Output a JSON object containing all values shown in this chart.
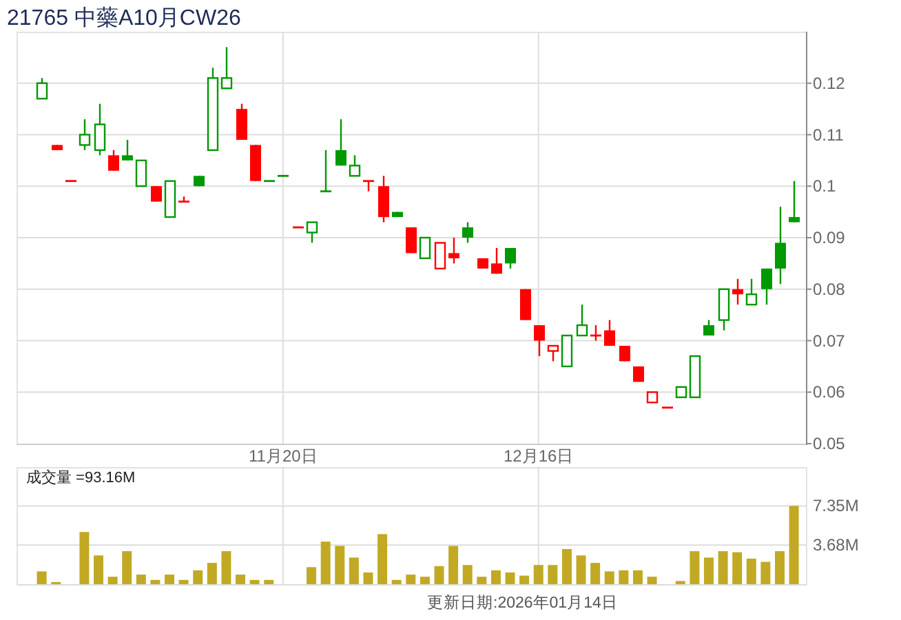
{
  "chart_data": [
    {
      "type": "candlestick",
      "title": "21765 中藥A10月CW26",
      "categories": [
        null,
        null,
        null,
        null,
        null,
        null,
        null,
        null,
        null,
        null,
        null,
        null,
        null,
        null,
        null,
        null,
        null,
        "11月20日",
        null,
        null,
        null,
        null,
        null,
        null,
        null,
        null,
        null,
        null,
        null,
        null,
        null,
        null,
        null,
        null,
        null,
        "12月16日",
        null,
        null,
        null,
        null,
        null,
        null,
        null,
        null,
        null,
        null,
        null,
        null,
        null,
        null,
        null,
        null,
        null,
        null
      ],
      "ohlc": [
        [
          0.117,
          0.121,
          0.117,
          0.12
        ],
        [
          0.108,
          0.108,
          0.107,
          0.107
        ],
        [
          0.101,
          0.101,
          0.101,
          0.101
        ],
        [
          0.108,
          0.113,
          0.107,
          0.11
        ],
        [
          0.107,
          0.116,
          0.106,
          0.112
        ],
        [
          0.106,
          0.107,
          0.103,
          0.103
        ],
        [
          0.106,
          0.109,
          0.105,
          0.105
        ],
        [
          0.1,
          0.105,
          0.1,
          0.105
        ],
        [
          0.1,
          0.1,
          0.097,
          0.097
        ],
        [
          0.094,
          0.101,
          0.094,
          0.101
        ],
        [
          0.097,
          0.098,
          0.097,
          0.097
        ],
        [
          0.102,
          0.102,
          0.1,
          0.1
        ],
        [
          0.107,
          0.123,
          0.107,
          0.121
        ],
        [
          0.119,
          0.127,
          0.119,
          0.121
        ],
        [
          0.115,
          0.116,
          0.109,
          0.109
        ],
        [
          0.108,
          0.108,
          0.101,
          0.101
        ],
        [
          0.101,
          0.101,
          0.101,
          0.101
        ],
        [
          0.102,
          0.102,
          0.102,
          0.102
        ],
        [
          0.092,
          0.092,
          0.092,
          0.092
        ],
        [
          0.091,
          0.093,
          0.089,
          0.093
        ],
        [
          0.099,
          0.107,
          0.099,
          0.099
        ],
        [
          0.107,
          0.113,
          0.104,
          0.104
        ],
        [
          0.102,
          0.106,
          0.102,
          0.104
        ],
        [
          0.101,
          0.101,
          0.099,
          0.101
        ],
        [
          0.1,
          0.102,
          0.093,
          0.094
        ],
        [
          0.095,
          0.095,
          0.094,
          0.094
        ],
        [
          0.092,
          0.092,
          0.087,
          0.087
        ],
        [
          0.086,
          0.09,
          0.086,
          0.09
        ],
        [
          0.084,
          0.089,
          0.084,
          0.089
        ],
        [
          0.087,
          0.09,
          0.085,
          0.086
        ],
        [
          0.092,
          0.093,
          0.089,
          0.09
        ],
        [
          0.086,
          0.086,
          0.084,
          0.084
        ],
        [
          0.085,
          0.088,
          0.083,
          0.083
        ],
        [
          0.088,
          0.088,
          0.084,
          0.085
        ],
        [
          0.08,
          0.08,
          0.074,
          0.074
        ],
        [
          0.073,
          0.073,
          0.067,
          0.07
        ],
        [
          0.068,
          0.069,
          0.066,
          0.069
        ],
        [
          0.065,
          0.071,
          0.065,
          0.071
        ],
        [
          0.071,
          0.077,
          0.071,
          0.073
        ],
        [
          0.071,
          0.073,
          0.07,
          0.071
        ],
        [
          0.072,
          0.074,
          0.069,
          0.069
        ],
        [
          0.069,
          0.069,
          0.066,
          0.066
        ],
        [
          0.065,
          0.065,
          0.062,
          0.062
        ],
        [
          0.058,
          0.06,
          0.058,
          0.06
        ],
        [
          0.057,
          0.057,
          0.057,
          0.057
        ],
        [
          0.059,
          0.061,
          0.059,
          0.061
        ],
        [
          0.059,
          0.067,
          0.059,
          0.067
        ],
        [
          0.073,
          0.074,
          0.071,
          0.071
        ],
        [
          0.074,
          0.08,
          0.072,
          0.08
        ],
        [
          0.08,
          0.082,
          0.077,
          0.079
        ],
        [
          0.077,
          0.082,
          0.077,
          0.079
        ],
        [
          0.084,
          0.084,
          0.077,
          0.08
        ],
        [
          0.089,
          0.096,
          0.081,
          0.084
        ],
        [
          0.094,
          0.101,
          0.093,
          0.093
        ]
      ],
      "colors": [
        "#009900",
        "#ff0000",
        "#ff0000",
        "#009900",
        "#009900",
        "#ff0000",
        "#009900",
        "#009900",
        "#ff0000",
        "#009900",
        "#ff0000",
        "#009900",
        "#009900",
        "#009900",
        "#ff0000",
        "#ff0000",
        "#009900",
        "#009900",
        "#ff0000",
        "#009900",
        "#009900",
        "#009900",
        "#009900",
        "#ff0000",
        "#ff0000",
        "#009900",
        "#ff0000",
        "#009900",
        "#ff0000",
        "#ff0000",
        "#009900",
        "#ff0000",
        "#ff0000",
        "#009900",
        "#ff0000",
        "#ff0000",
        "#ff0000",
        "#009900",
        "#009900",
        "#ff0000",
        "#ff0000",
        "#ff0000",
        "#ff0000",
        "#ff0000",
        "#ff0000",
        "#009900",
        "#009900",
        "#009900",
        "#009900",
        "#ff0000",
        "#009900",
        "#009900",
        "#009900",
        "#009900"
      ],
      "ylim": [
        0.05,
        0.13
      ],
      "yticks": [
        0.05,
        0.06,
        0.07,
        0.08,
        0.09,
        0.1,
        0.11,
        0.12
      ],
      "grid": true
    },
    {
      "type": "bar",
      "title": "成交量 =93.16M",
      "categories": [
        null,
        null,
        null,
        null,
        null,
        null,
        null,
        null,
        null,
        null,
        null,
        null,
        null,
        null,
        null,
        null,
        null,
        null,
        null,
        null,
        null,
        null,
        null,
        null,
        null,
        null,
        null,
        null,
        null,
        null,
        null,
        null,
        null,
        null,
        null,
        null,
        null,
        null,
        null,
        null,
        null,
        null,
        null,
        null,
        null,
        null,
        null,
        null,
        null,
        null,
        null,
        null,
        null,
        null
      ],
      "values": [
        1.2,
        0.2,
        0,
        4.9,
        2.7,
        0.7,
        3.1,
        0.9,
        0.4,
        0.9,
        0.4,
        1.3,
        2.0,
        3.1,
        0.9,
        0.4,
        0.4,
        0,
        0,
        1.6,
        4.0,
        3.6,
        2.5,
        1.1,
        4.7,
        0.4,
        0.9,
        0.7,
        1.7,
        3.6,
        1.8,
        0.7,
        1.3,
        1.1,
        0.8,
        1.8,
        1.8,
        3.3,
        2.7,
        2.0,
        1.2,
        1.3,
        1.3,
        0.7,
        0,
        0.3,
        3.1,
        2.5,
        3.1,
        3.0,
        2.4,
        2.1,
        3.1,
        7.35
      ],
      "color": "#c2a924",
      "ylim": [
        0,
        11
      ],
      "yticks": [
        {
          "value": 3.68,
          "label": "3.68M"
        },
        {
          "value": 7.35,
          "label": "7.35M"
        }
      ],
      "grid": true,
      "annotations": [
        "更新日期:2026年01月14日"
      ]
    }
  ]
}
